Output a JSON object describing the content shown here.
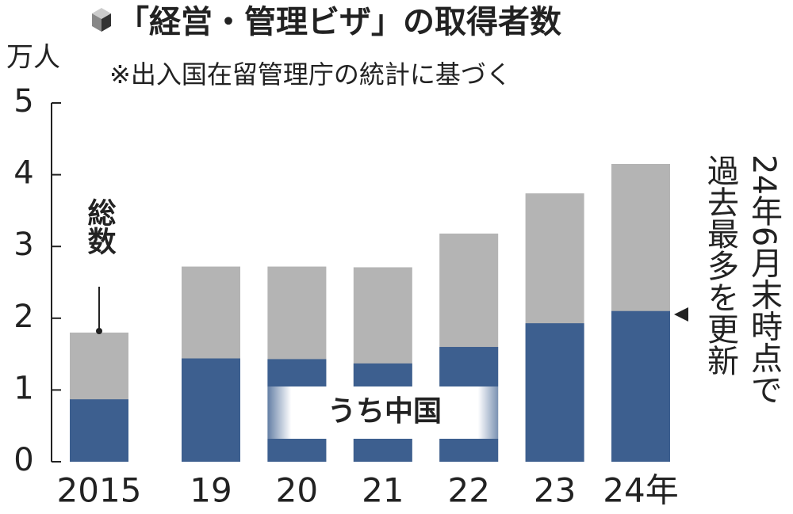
{
  "chart_data": {
    "type": "bar",
    "title": "「経営・管理ビザ」の取得者数",
    "subtitle": "※出入国在留管理庁の統計に基づく",
    "y_label": "万人",
    "categories": [
      "2015",
      "19",
      "20",
      "21",
      "22",
      "23",
      "24年"
    ],
    "series": [
      {
        "name": "総数",
        "color": "#b4b4b4",
        "values": [
          1.8,
          2.72,
          2.72,
          2.71,
          3.18,
          3.74,
          4.15
        ]
      },
      {
        "name": "うち中国",
        "color": "#3d5f8f",
        "values": [
          0.87,
          1.44,
          1.43,
          1.37,
          1.6,
          1.93,
          2.1
        ]
      }
    ],
    "annotation": [
      "24年6月末時点で",
      "過去最多を更新"
    ],
    "ylim": [
      0,
      5
    ],
    "yticks": [
      0,
      1,
      2,
      3,
      4,
      5
    ]
  }
}
